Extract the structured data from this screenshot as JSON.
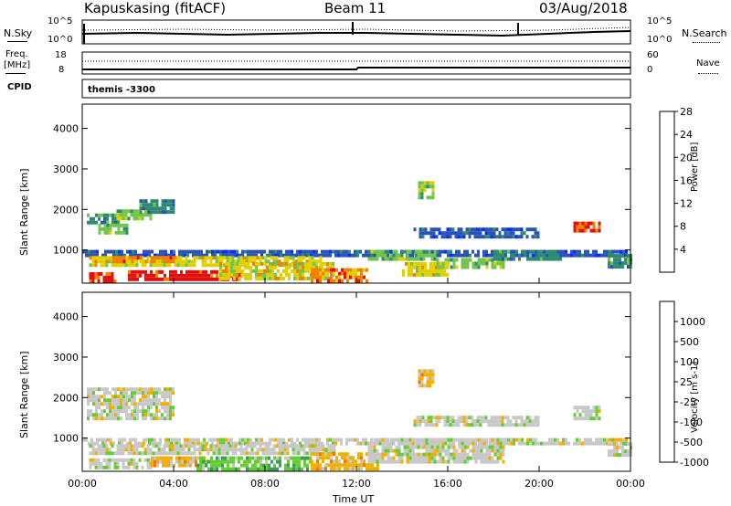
{
  "header": {
    "station": "Kapuskasing (fitACF)",
    "beam": "Beam 11",
    "date": "03/Aug/2018"
  },
  "noise_panel": {
    "left_label": "N.Sky",
    "right_label": "N.Search",
    "left_ticks": [
      "10^5",
      "10^0"
    ],
    "right_ticks": [
      "10^5",
      "10^0"
    ]
  },
  "freq_panel": {
    "left_label_1": "Freq.",
    "left_label_2": "[MHz]",
    "right_label": "Nave",
    "left_ticks": [
      "18",
      "8"
    ],
    "right_ticks": [
      "60",
      "0"
    ]
  },
  "cpid_panel": {
    "label": "CPID",
    "value": "themis -3300"
  },
  "chart_data": [
    {
      "type": "heatmap",
      "title": "",
      "ylabel": "Slant Range [km]",
      "xlabel": "",
      "xlim": [
        "00:00",
        "24:00"
      ],
      "ylim": [
        180,
        4600
      ],
      "y_ticks": [
        "1000",
        "2000",
        "3000",
        "4000"
      ],
      "colorbar": {
        "label": "Power [dB]",
        "ticks": [
          "4",
          "8",
          "12",
          "16",
          "20",
          "24",
          "28"
        ],
        "colors": [
          "#0a2cff",
          "#2a54b4",
          "#2e8a70",
          "#70c54a",
          "#e0d000",
          "#f08000",
          "#e01010"
        ]
      },
      "features": [
        {
          "t0": 0.2,
          "t1": 1.6,
          "r0": 1650,
          "r1": 1900,
          "level": 2
        },
        {
          "t0": 0.7,
          "t1": 2.0,
          "r0": 1450,
          "r1": 1650,
          "level": 3
        },
        {
          "t0": 1.5,
          "t1": 3.0,
          "r0": 1800,
          "r1": 2000,
          "level": 3
        },
        {
          "t0": 2.5,
          "t1": 4.0,
          "r0": 1950,
          "r1": 2250,
          "level": 2
        },
        {
          "t0": 0.0,
          "t1": 23.8,
          "r0": 850,
          "r1": 1000,
          "level": 1
        },
        {
          "t0": 0.3,
          "t1": 10.5,
          "r0": 600,
          "r1": 850,
          "level": 4
        },
        {
          "t0": 1.3,
          "t1": 4.0,
          "r0": 700,
          "r1": 850,
          "level": 5
        },
        {
          "t0": 0.3,
          "t1": 1.5,
          "r0": 260,
          "r1": 450,
          "level": 6
        },
        {
          "t0": 2.0,
          "t1": 7.0,
          "r0": 300,
          "r1": 500,
          "level": 6
        },
        {
          "t0": 6.0,
          "t1": 11.0,
          "r0": 260,
          "r1": 700,
          "level": 4
        },
        {
          "t0": 10.0,
          "t1": 12.5,
          "r0": 260,
          "r1": 550,
          "level": 5
        },
        {
          "t0": 12.5,
          "t1": 15.5,
          "r0": 800,
          "r1": 1000,
          "level": 3
        },
        {
          "t0": 14.0,
          "t1": 16.0,
          "r0": 350,
          "r1": 700,
          "level": 4
        },
        {
          "t0": 14.5,
          "t1": 20.0,
          "r0": 1300,
          "r1": 1550,
          "level": 1
        },
        {
          "t0": 15.5,
          "t1": 18.5,
          "r0": 550,
          "r1": 800,
          "level": 3
        },
        {
          "t0": 18.0,
          "t1": 21.0,
          "r0": 800,
          "r1": 1000,
          "level": 2
        },
        {
          "t0": 14.7,
          "t1": 15.3,
          "r0": 2300,
          "r1": 2700,
          "level": 3
        },
        {
          "t0": 21.5,
          "t1": 22.7,
          "r0": 1450,
          "r1": 1700,
          "level": 6
        },
        {
          "t0": 23.0,
          "t1": 24.0,
          "r0": 600,
          "r1": 900,
          "level": 2
        }
      ]
    },
    {
      "type": "heatmap",
      "title": "",
      "ylabel": "Slant Range [km]",
      "xlabel": "Time UT",
      "xlim": [
        "00:00",
        "24:00"
      ],
      "ylim": [
        180,
        4600
      ],
      "y_ticks": [
        "1000",
        "2000",
        "3000",
        "4000"
      ],
      "x_ticks": [
        "00:00",
        "04:00",
        "08:00",
        "12:00",
        "16:00",
        "20:00",
        "00:00"
      ],
      "colorbar": {
        "label": "Velocity [m s-1]",
        "ticks": [
          "1000",
          "500",
          "100",
          "25",
          "-25",
          "-100",
          "-500",
          "-1000"
        ],
        "colors": [
          "#1a3ad8",
          "#2e7db0",
          "#3d9a5a",
          "#66cc33",
          "#c8c8c8",
          "#f0b000",
          "#f07800",
          "#e01010"
        ]
      },
      "features": [
        {
          "t0": 0.2,
          "t1": 4.0,
          "r0": 1450,
          "r1": 2250,
          "level": 4
        },
        {
          "t0": 0.0,
          "t1": 23.8,
          "r0": 850,
          "r1": 1000,
          "level": 4
        },
        {
          "t0": 0.3,
          "t1": 11.0,
          "r0": 600,
          "r1": 850,
          "level": 4
        },
        {
          "t0": 0.3,
          "t1": 3.0,
          "r0": 260,
          "r1": 500,
          "level": 4
        },
        {
          "t0": 3.0,
          "t1": 5.5,
          "r0": 300,
          "r1": 550,
          "level": 5
        },
        {
          "t0": 5.0,
          "t1": 10.0,
          "r0": 260,
          "r1": 550,
          "level": 3
        },
        {
          "t0": 10.0,
          "t1": 13.0,
          "r0": 260,
          "r1": 650,
          "level": 5
        },
        {
          "t0": 12.5,
          "t1": 18.5,
          "r0": 400,
          "r1": 1000,
          "level": 4
        },
        {
          "t0": 14.5,
          "t1": 20.0,
          "r0": 1300,
          "r1": 1550,
          "level": 4
        },
        {
          "t0": 14.7,
          "t1": 15.3,
          "r0": 2300,
          "r1": 2700,
          "level": 5
        },
        {
          "t0": 21.5,
          "t1": 22.7,
          "r0": 1450,
          "r1": 1800,
          "level": 4
        },
        {
          "t0": 23.0,
          "t1": 24.0,
          "r0": 600,
          "r1": 900,
          "level": 4
        }
      ]
    }
  ]
}
